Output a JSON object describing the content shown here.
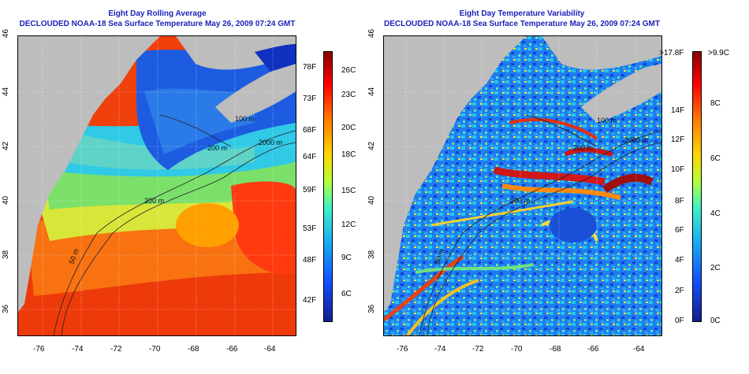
{
  "left_panel": {
    "title": "Eight Day Rolling Average",
    "subtitle": "DECLOUDED NOAA-18 Sea Surface Temperature May 26, 2009 07:24 GMT",
    "lon_ticks": [
      "-76",
      "-74",
      "-72",
      "-70",
      "-68",
      "-66",
      "-64"
    ],
    "lat_ticks": [
      "46",
      "44",
      "42",
      "40",
      "38",
      "36"
    ],
    "contour_labels": [
      "100 m",
      "200 m",
      "2000 m",
      "200 m",
      "50 m"
    ],
    "colorbar_left": [
      "78F",
      "73F",
      "68F",
      "64F",
      "59F",
      "53F",
      "48F",
      "42F"
    ],
    "colorbar_right": [
      "26C",
      "23C",
      "20C",
      "18C",
      "15C",
      "12C",
      "9C",
      "6C"
    ]
  },
  "right_panel": {
    "title": "Eight Day Temperature Variability",
    "subtitle": "DECLOUDED NOAA-18 Sea Surface Temperature May 26, 2009 07:24 GMT",
    "lon_ticks": [
      "-76",
      "-74",
      "-72",
      "-70",
      "-68",
      "-66",
      "-64"
    ],
    "lat_ticks": [
      "46",
      "44",
      "42",
      "40",
      "38",
      "36"
    ],
    "contour_labels": [
      "100 m",
      "200 m",
      "2000 m",
      "200 m",
      "50 m"
    ],
    "colorbar_left": [
      ">17.8F",
      "14F",
      "12F",
      "10F",
      "8F",
      "6F",
      "4F",
      "2F",
      "0F"
    ],
    "colorbar_right": [
      ">9.9C",
      "8C",
      "6C",
      "4C",
      "2C",
      "0C"
    ]
  },
  "colors": {
    "land": "#bdbdbd",
    "title": "#1d22b8"
  }
}
